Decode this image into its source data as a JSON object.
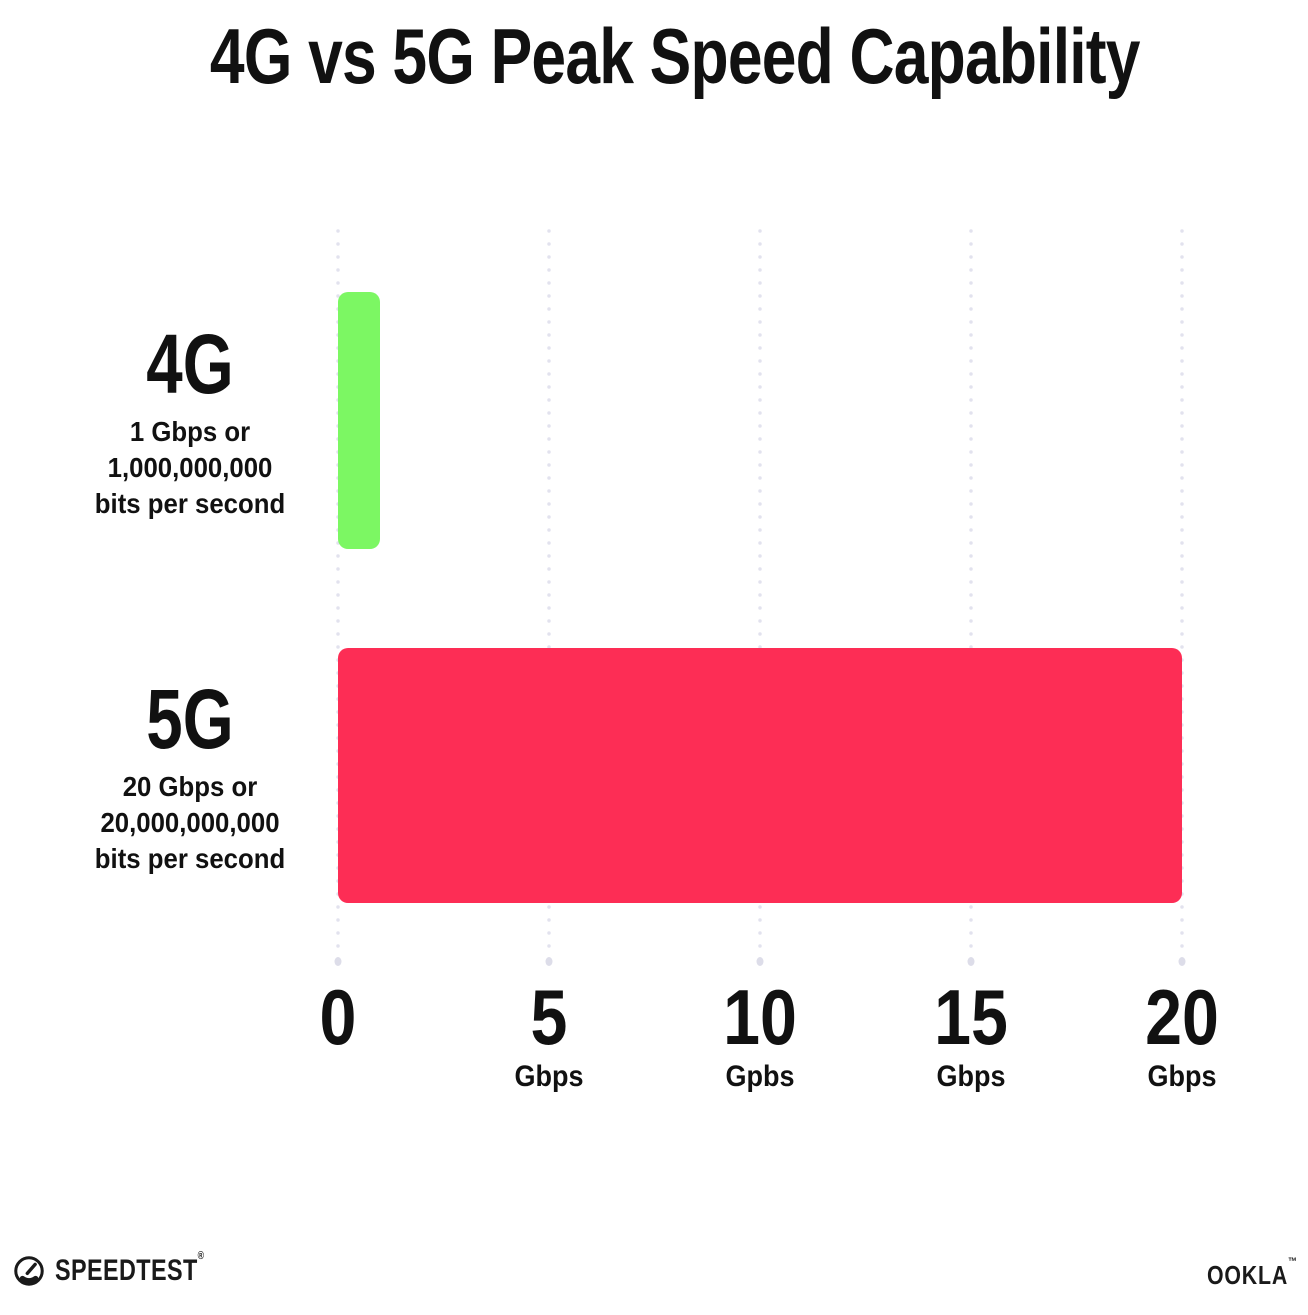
{
  "title": "4G vs 5G Peak Speed Capability",
  "chart_data": {
    "type": "bar",
    "orientation": "horizontal",
    "title": "4G vs 5G Peak Speed Capability",
    "categories": [
      "4G",
      "5G"
    ],
    "values": [
      1,
      20
    ],
    "value_unit": "Gbps",
    "bar_colors": [
      "#7CF763",
      "#FD2D55"
    ],
    "xlim": [
      0,
      20
    ],
    "x_tick_values": [
      0,
      5,
      10,
      15,
      20
    ],
    "x_tick_labels": [
      "0",
      "5 Gbps",
      "10 Gpbs",
      "15 Gbps",
      "20 Gbps"
    ],
    "grid": "dotted-vertical-gridlines",
    "legend": "none",
    "annotations": [
      "4G: 1 Gbps or 1,000,000,000 bits per second",
      "5G: 20 Gbps or 20,000,000,000 bits per second"
    ]
  },
  "rows": [
    {
      "label": "4G",
      "lines": [
        "1 Gbps or",
        "1,000,000,000",
        "bits per second"
      ],
      "value": 1,
      "color": "#7CF763"
    },
    {
      "label": "5G",
      "lines": [
        "20 Gbps or",
        "20,000,000,000",
        "bits per second"
      ],
      "value": 20,
      "color": "#FD2D55"
    }
  ],
  "x_axis": {
    "ticks": [
      {
        "value": "0",
        "unit": ""
      },
      {
        "value": "5",
        "unit": "Gbps"
      },
      {
        "value": "10",
        "unit": "Gpbs"
      },
      {
        "value": "15",
        "unit": "Gbps"
      },
      {
        "value": "20",
        "unit": "Gbps"
      }
    ]
  },
  "footer": {
    "speedtest_text": "SPEEDTEST",
    "speedtest_mark": "®",
    "ookla_text": "OOKLA",
    "ookla_mark": "™"
  }
}
